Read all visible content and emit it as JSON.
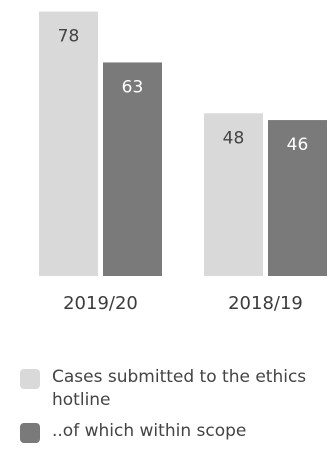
{
  "chart_data": {
    "type": "bar",
    "categories": [
      "2019/20",
      "2018/19"
    ],
    "series": [
      {
        "name": "Cases submitted to the ethics hotline",
        "values": [
          78,
          48
        ],
        "color": "#d9d9d9"
      },
      {
        "name": "..of which within scope",
        "values": [
          63,
          46
        ],
        "color": "#7a7a7a"
      }
    ],
    "ylim": [
      0,
      80
    ],
    "grid": false,
    "legend_position": "bottom-left",
    "data_labels": [
      "78",
      "63",
      "48",
      "46"
    ],
    "label_color_on_light": "#444444",
    "label_color_on_dark": "#ffffff"
  },
  "legend": {
    "items": [
      {
        "label": "Cases submitted to the ethics hotline",
        "color": "#d9d9d9"
      },
      {
        "label": "..of which within scope",
        "color": "#7a7a7a"
      }
    ]
  }
}
